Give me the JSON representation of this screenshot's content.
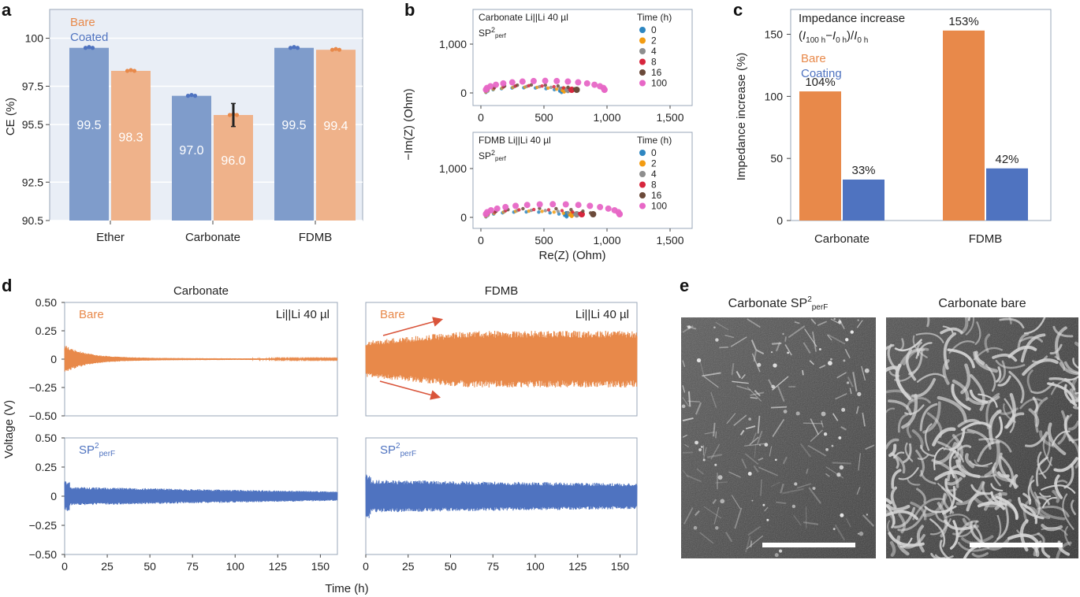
{
  "colors": {
    "bare": "#E8894A",
    "coated": "#4F73C0",
    "bar_bare": "#EFB28A",
    "bar_coated": "#7F9CCB",
    "panel_a_bg": "#E9EEF6",
    "frame": "#9AA7B8"
  },
  "panels": {
    "a": "a",
    "b": "b",
    "c": "c",
    "d": "d",
    "e": "e"
  },
  "chart_data": [
    {
      "id": "a",
      "type": "bar",
      "ylabel": "CE (%)",
      "ylim": [
        90.5,
        101.5
      ],
      "yticks": [
        "90.5",
        "92.5",
        "95.5",
        "97.5",
        "100"
      ],
      "ytick_values": [
        90.5,
        92.5,
        95.5,
        97.5,
        100
      ],
      "categories": [
        "Ether",
        "Carbonate",
        "FDMB"
      ],
      "legend": [
        "Bare",
        "Coated"
      ],
      "series": [
        {
          "name": "Coated",
          "values": [
            99.5,
            97.0,
            99.5
          ],
          "labels": [
            "99.5",
            "97.0",
            "99.5"
          ]
        },
        {
          "name": "Bare",
          "values": [
            98.3,
            96.0,
            99.4
          ],
          "labels": [
            "98.3",
            "96.0",
            "99.4"
          ]
        }
      ]
    },
    {
      "id": "b",
      "type": "scatter",
      "xlabel": "Re(Z) (Ohm)",
      "ylabel": "−Im(Z) (Ohm)",
      "xticks": [
        "0",
        "500",
        "1,000",
        "1,500"
      ],
      "xtick_values": [
        0,
        500,
        1000,
        1500
      ],
      "yticks": [
        "0",
        "1,000"
      ],
      "ytick_values": [
        0,
        1000
      ],
      "legend_title": "Time (h)",
      "times": [
        "0",
        "2",
        "4",
        "8",
        "16",
        "100"
      ],
      "time_colors": [
        "#2E86C1",
        "#F39C12",
        "#8E8E8E",
        "#D7263D",
        "#6B4A3A",
        "#E767C6"
      ],
      "subplots": [
        {
          "title_line1": "Carbonate Li||Li 40 µl",
          "title_line2": "SP",
          "sup": "2",
          "sub": "perf",
          "end_x": [
            640,
            660,
            690,
            720,
            760,
            980
          ]
        },
        {
          "title_line1": "FDMB Li||Li 40 µl",
          "title_line2": "SP",
          "sup": "2",
          "sub": "perf",
          "end_x": [
            680,
            720,
            760,
            800,
            890,
            1100
          ]
        }
      ]
    },
    {
      "id": "c",
      "type": "bar",
      "ylabel": "Impedance increase (%)",
      "title_line1": "Impedance increase",
      "title_line2": "(I100 h−I0 h)/I0 h",
      "ylim": [
        0,
        170
      ],
      "yticks": [
        "0",
        "50",
        "100",
        "150"
      ],
      "ytick_values": [
        0,
        50,
        100,
        150
      ],
      "categories": [
        "Carbonate",
        "FDMB"
      ],
      "legend": [
        "Bare",
        "Coating"
      ],
      "series": [
        {
          "name": "Bare",
          "values": [
            104,
            153
          ],
          "labels": [
            "104%",
            "153%"
          ]
        },
        {
          "name": "Coating",
          "values": [
            33,
            42
          ],
          "labels": [
            "33%",
            "42%"
          ]
        }
      ]
    },
    {
      "id": "d",
      "type": "line",
      "xlabel": "Time (h)",
      "ylabel": "Voltage (V)",
      "xticks": [
        "0",
        "25",
        "50",
        "75",
        "100",
        "125",
        "150"
      ],
      "xtick_values": [
        0,
        25,
        50,
        75,
        100,
        125,
        150
      ],
      "yticks": [
        "−0.50",
        "−0.25",
        "0",
        "0.25",
        "0.50"
      ],
      "ytick_values": [
        -0.5,
        -0.25,
        0,
        0.25,
        0.5
      ],
      "xlim": [
        0,
        160
      ],
      "ylim": [
        -0.5,
        0.5
      ],
      "column_titles": [
        "Carbonate",
        "FDMB"
      ],
      "cell_label": "Li||Li 40 µl",
      "subplots": [
        {
          "label": "Bare",
          "series": "Bare",
          "amp_start": 0.1,
          "amp_end": 0.005
        },
        {
          "label": "Bare",
          "series": "Bare",
          "amp_start": 0.16,
          "amp_end": 0.25
        },
        {
          "label": "SP",
          "sup": "2",
          "sub": "perF",
          "series": "SP2perF",
          "amp_start": 0.08,
          "amp_end": 0.04
        },
        {
          "label": "SP",
          "sup": "2",
          "sub": "perF",
          "series": "SP2perF",
          "amp_start": 0.14,
          "amp_end": 0.11
        }
      ]
    }
  ],
  "sem": {
    "left_title": "Carbonate SP",
    "left_sup": "2",
    "left_sub": "perF",
    "right_title": "Carbonate bare"
  }
}
